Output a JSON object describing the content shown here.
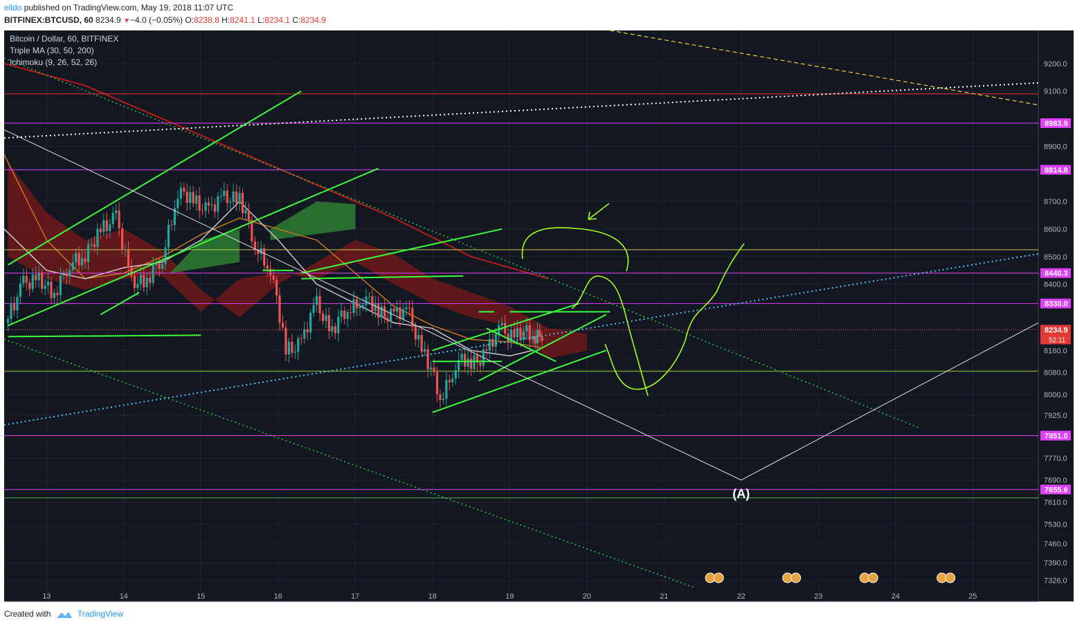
{
  "header": {
    "user": "elldo",
    "published": "published on TradingView.com, May 19, 2018 11:07 UTC",
    "symbol": "BITFINEX:BTCUSD, 60",
    "last": "8234.9",
    "change": "−4.0 (−0.05%)",
    "o_label": "O:",
    "o": "8238.8",
    "h_label": "H:",
    "h": "8241.1",
    "l_label": "L:",
    "l": "8234.1",
    "c_label": "C:",
    "c": "8234.9"
  },
  "footer": {
    "created": "Created with",
    "brand": "TradingView"
  },
  "colors": {
    "bg": "#131722",
    "up": "#26a69a",
    "down": "#ef5350",
    "magenta": "#e040fb",
    "green": "#3cff3c",
    "cyan": "#4fc3f7",
    "yellow": "#f4d03f"
  },
  "chart_data": {
    "type": "candlestick",
    "legend": [
      "Bitcoin / Dollar, 60, BITFINEX",
      "Triple MA (30, 50, 200)",
      "Ichimoku (9, 26, 52, 26)"
    ],
    "ylim": [
      7250,
      9320
    ],
    "xlim": [
      12.45,
      25.85
    ],
    "y_ticks": [
      9200,
      9100,
      8900,
      8700,
      8600,
      8500,
      8400,
      8160,
      8080,
      8000,
      7925,
      7770,
      7690,
      7610,
      7530,
      7460,
      7390,
      7326
    ],
    "y_tick_labels": [
      "9200.0",
      "9100.0",
      "8900.0",
      "8700.0",
      "8600.0",
      "8500.0",
      "8400.0",
      "8160.0",
      "8080.0",
      "8000.0",
      "7925.0",
      "7770.0",
      "7690.0",
      "7610.0",
      "7530.0",
      "7460.0",
      "7390.0",
      "7326.0"
    ],
    "x_ticks": [
      13,
      14,
      15,
      16,
      17,
      18,
      19,
      20,
      21,
      22,
      23,
      24,
      25
    ],
    "x_tick_labels": [
      "13",
      "14",
      "15",
      "16",
      "17",
      "18",
      "19",
      "20",
      "21",
      "22",
      "23",
      "24",
      "25"
    ],
    "horizontal_levels": [
      {
        "value": 8983.9,
        "label": "8983.9",
        "color": "#e040fb"
      },
      {
        "value": 8814.8,
        "label": "8814.8",
        "color": "#e040fb"
      },
      {
        "value": 8440.3,
        "label": "8440.3",
        "color": "#e040fb"
      },
      {
        "value": 8330.0,
        "label": "8330.0",
        "color": "#e040fb"
      },
      {
        "value": 7851.0,
        "label": "7851.0",
        "color": "#e040fb"
      },
      {
        "value": 7655.6,
        "label": "7655.6",
        "color": "#e040fb"
      }
    ],
    "other_lines": [
      {
        "value": 9090,
        "color": "#e53935"
      },
      {
        "value": 8525,
        "color": "#c8c84a"
      },
      {
        "value": 8085,
        "color": "#9acd32"
      },
      {
        "value": 7625,
        "color": "#4caf50"
      }
    ],
    "current_price": {
      "value": 8234.9,
      "label": "8234.9",
      "countdown": "52:11"
    },
    "close": [
      {
        "x": 12.5,
        "y": 8260
      },
      {
        "x": 12.7,
        "y": 8420
      },
      {
        "x": 12.9,
        "y": 8400
      },
      {
        "x": 13.1,
        "y": 8380
      },
      {
        "x": 13.3,
        "y": 8460
      },
      {
        "x": 13.5,
        "y": 8520
      },
      {
        "x": 13.7,
        "y": 8580
      },
      {
        "x": 13.9,
        "y": 8660
      },
      {
        "x": 14.1,
        "y": 8390
      },
      {
        "x": 14.3,
        "y": 8430
      },
      {
        "x": 14.5,
        "y": 8480
      },
      {
        "x": 14.7,
        "y": 8750
      },
      {
        "x": 14.9,
        "y": 8690
      },
      {
        "x": 15.1,
        "y": 8680
      },
      {
        "x": 15.3,
        "y": 8700
      },
      {
        "x": 15.5,
        "y": 8730
      },
      {
        "x": 15.7,
        "y": 8530
      },
      {
        "x": 15.9,
        "y": 8470
      },
      {
        "x": 16.1,
        "y": 8150
      },
      {
        "x": 16.3,
        "y": 8200
      },
      {
        "x": 16.5,
        "y": 8320
      },
      {
        "x": 16.7,
        "y": 8240
      },
      {
        "x": 16.9,
        "y": 8300
      },
      {
        "x": 17.1,
        "y": 8360
      },
      {
        "x": 17.3,
        "y": 8290
      },
      {
        "x": 17.5,
        "y": 8300
      },
      {
        "x": 17.7,
        "y": 8280
      },
      {
        "x": 17.9,
        "y": 8150
      },
      {
        "x": 18.1,
        "y": 7980
      },
      {
        "x": 18.3,
        "y": 8120
      },
      {
        "x": 18.5,
        "y": 8110
      },
      {
        "x": 18.7,
        "y": 8160
      },
      {
        "x": 18.9,
        "y": 8230
      },
      {
        "x": 19.1,
        "y": 8220
      },
      {
        "x": 19.3,
        "y": 8210
      },
      {
        "x": 19.45,
        "y": 8235
      }
    ],
    "annotations": [
      "(A)"
    ]
  }
}
